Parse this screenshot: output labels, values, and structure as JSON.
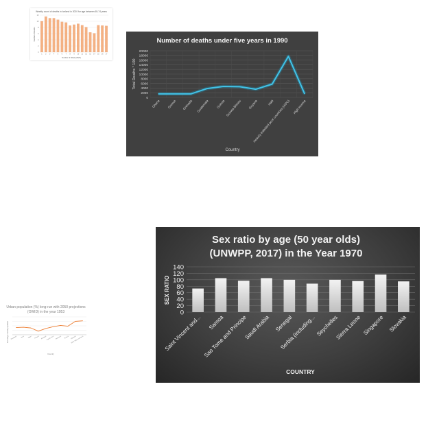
{
  "charts": [
    {
      "id": "c1",
      "type": "bar",
      "title": "Weekly count of deaths in Iceland in 2020 for age between 65-74 years",
      "xlabel": "Number of Week (2020)",
      "ylabel": "Number of Deaths",
      "categories": [
        "1",
        "2",
        "3",
        "4",
        "5",
        "6",
        "7",
        "8",
        "9",
        "10",
        "11",
        "12",
        "13",
        "14",
        "15",
        "16",
        "17"
      ],
      "values": [
        10,
        11.5,
        11,
        11,
        10.5,
        9.8,
        9.6,
        8.6,
        8.9,
        9.2,
        8.7,
        8.1,
        6.4,
        6.1,
        8.7,
        8.6,
        8.5
      ],
      "ylim": [
        0,
        12
      ],
      "yticks": [
        "0",
        "2",
        "4",
        "6",
        "8",
        "10",
        "12"
      ],
      "colors": {
        "bar": "#f4b183",
        "bar_edge": "#e69a6b"
      }
    },
    {
      "id": "c2",
      "type": "line",
      "title": "Number of deaths under five years in 1990",
      "xlabel": "Country",
      "ylabel": "Total Deaths * 100",
      "categories": [
        "Ghana",
        "Greece",
        "Grenada",
        "Guatemala",
        "Guinea",
        "Guinea-Bissau",
        "Guyana",
        "Haiti",
        "Heavily indebted poor countries (HIPC)",
        "High income"
      ],
      "values": [
        1500,
        1500,
        1500,
        3800,
        4700,
        4600,
        3500,
        5700,
        17600,
        1500
      ],
      "ylim": [
        0,
        20000
      ],
      "yticks": [
        "0",
        "2000",
        "4000",
        "6000",
        "8000",
        "10000",
        "12000",
        "14000",
        "16000",
        "18000",
        "20000"
      ],
      "colors": {
        "line": "#41c3e8",
        "glow": "#1f8fb3",
        "background": "#404040"
      }
    },
    {
      "id": "c3",
      "type": "line",
      "title": "Urban population (%) long-run with 2050 projections (OWID) in the year 1953",
      "xlabel": "Country",
      "ylabel": "Percentage of urban population",
      "categories": [
        "Paraguay",
        "Peru",
        "Qatar",
        "Poland",
        "Portugal",
        "Puerto Rico",
        "Romania",
        "Russia",
        "Rwanda",
        "Saint Kitts and Nevis"
      ],
      "values": [
        40,
        42,
        38,
        20,
        35,
        45,
        52,
        48,
        75,
        78
      ],
      "ylim": [
        0,
        100
      ],
      "colors": {
        "line": "#ed7d31"
      }
    },
    {
      "id": "c4",
      "type": "bar",
      "title_lines": [
        "Sex ratio by age (50 year olds)",
        "(UNWPP, 2017) in the Year 1970"
      ],
      "xlabel": "COUNTRY",
      "ylabel": "SEX RATIO",
      "categories": [
        "Saint Vincent and...",
        "Samoa",
        "Sao Tome and Principe",
        "Saudi Arabia",
        "Senegal",
        "Serbia (including...",
        "Seychelles",
        "Sierra Leone",
        "Singapore",
        "Slovakia"
      ],
      "values": [
        73,
        105,
        97,
        105,
        100,
        88,
        100,
        96,
        116,
        95
      ],
      "ylim": [
        0,
        140
      ],
      "yticks": [
        "0",
        "20",
        "40",
        "60",
        "80",
        "100",
        "120",
        "140"
      ],
      "colors": {
        "bar_top": "#f2f2f2",
        "bar_bottom": "#bfbfbf"
      }
    }
  ]
}
